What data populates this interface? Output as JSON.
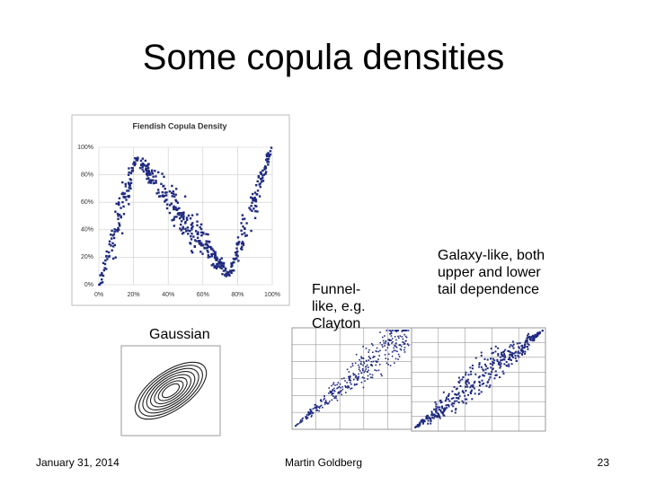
{
  "title": "Some copula densities",
  "fiendish_chart": {
    "title": "Fiendish Copula Density",
    "y_ticks": [
      "100%",
      "80%",
      "60%",
      "40%",
      "20%",
      "0%"
    ],
    "x_ticks": [
      "0%",
      "20%",
      "40%",
      "60%",
      "80%",
      "100%"
    ]
  },
  "captions": {
    "gaussian": "Gaussian",
    "funnel": "Funnel-like, e.g. Clayton",
    "galaxy": "Galaxy-like, both upper and lower tail dependence"
  },
  "footer": {
    "date": "January 31, 2014",
    "author": "Martin Goldberg",
    "page": "23"
  }
}
